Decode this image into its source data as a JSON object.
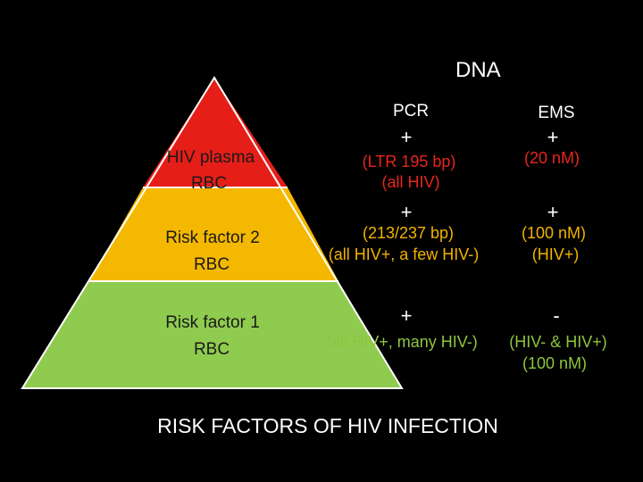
{
  "pyramid": {
    "tiers": [
      {
        "label_line1": "HIV plasma",
        "label_line2": "RBC",
        "color": "#e51e18"
      },
      {
        "label_line1": "Risk factor 2",
        "label_line2": "RBC",
        "color": "#f4b800"
      },
      {
        "label_line1": "Risk factor 1",
        "label_line2": "RBC",
        "color": "#8fcb4e"
      }
    ]
  },
  "header": {
    "dna": "DNA",
    "pcr": "PCR",
    "ems": "EMS"
  },
  "rows": [
    {
      "pcr_sign": "+",
      "pcr_line1": "(LTR 195 bp)",
      "pcr_line2": "(all HIV)",
      "ems_sign": "+",
      "ems_line1": "(20 nM)",
      "color": "#e8261c"
    },
    {
      "pcr_sign": "+",
      "pcr_line1": "(213/237 bp)",
      "pcr_line2": "(all HIV+, a few HIV-)",
      "ems_sign": "+",
      "ems_line1": "(100 nM)",
      "ems_line2": "(HIV+)",
      "color": "#f2b300"
    },
    {
      "pcr_sign": "+",
      "pcr_line1": "(all HIV+, many HIV-)",
      "ems_sign": "-",
      "ems_line1": "(HIV- & HIV+)",
      "ems_line2": "(100 nM)",
      "color": "#8dc63f"
    }
  ],
  "footer": {
    "title": "RISK FACTORS OF HIV INFECTION"
  }
}
